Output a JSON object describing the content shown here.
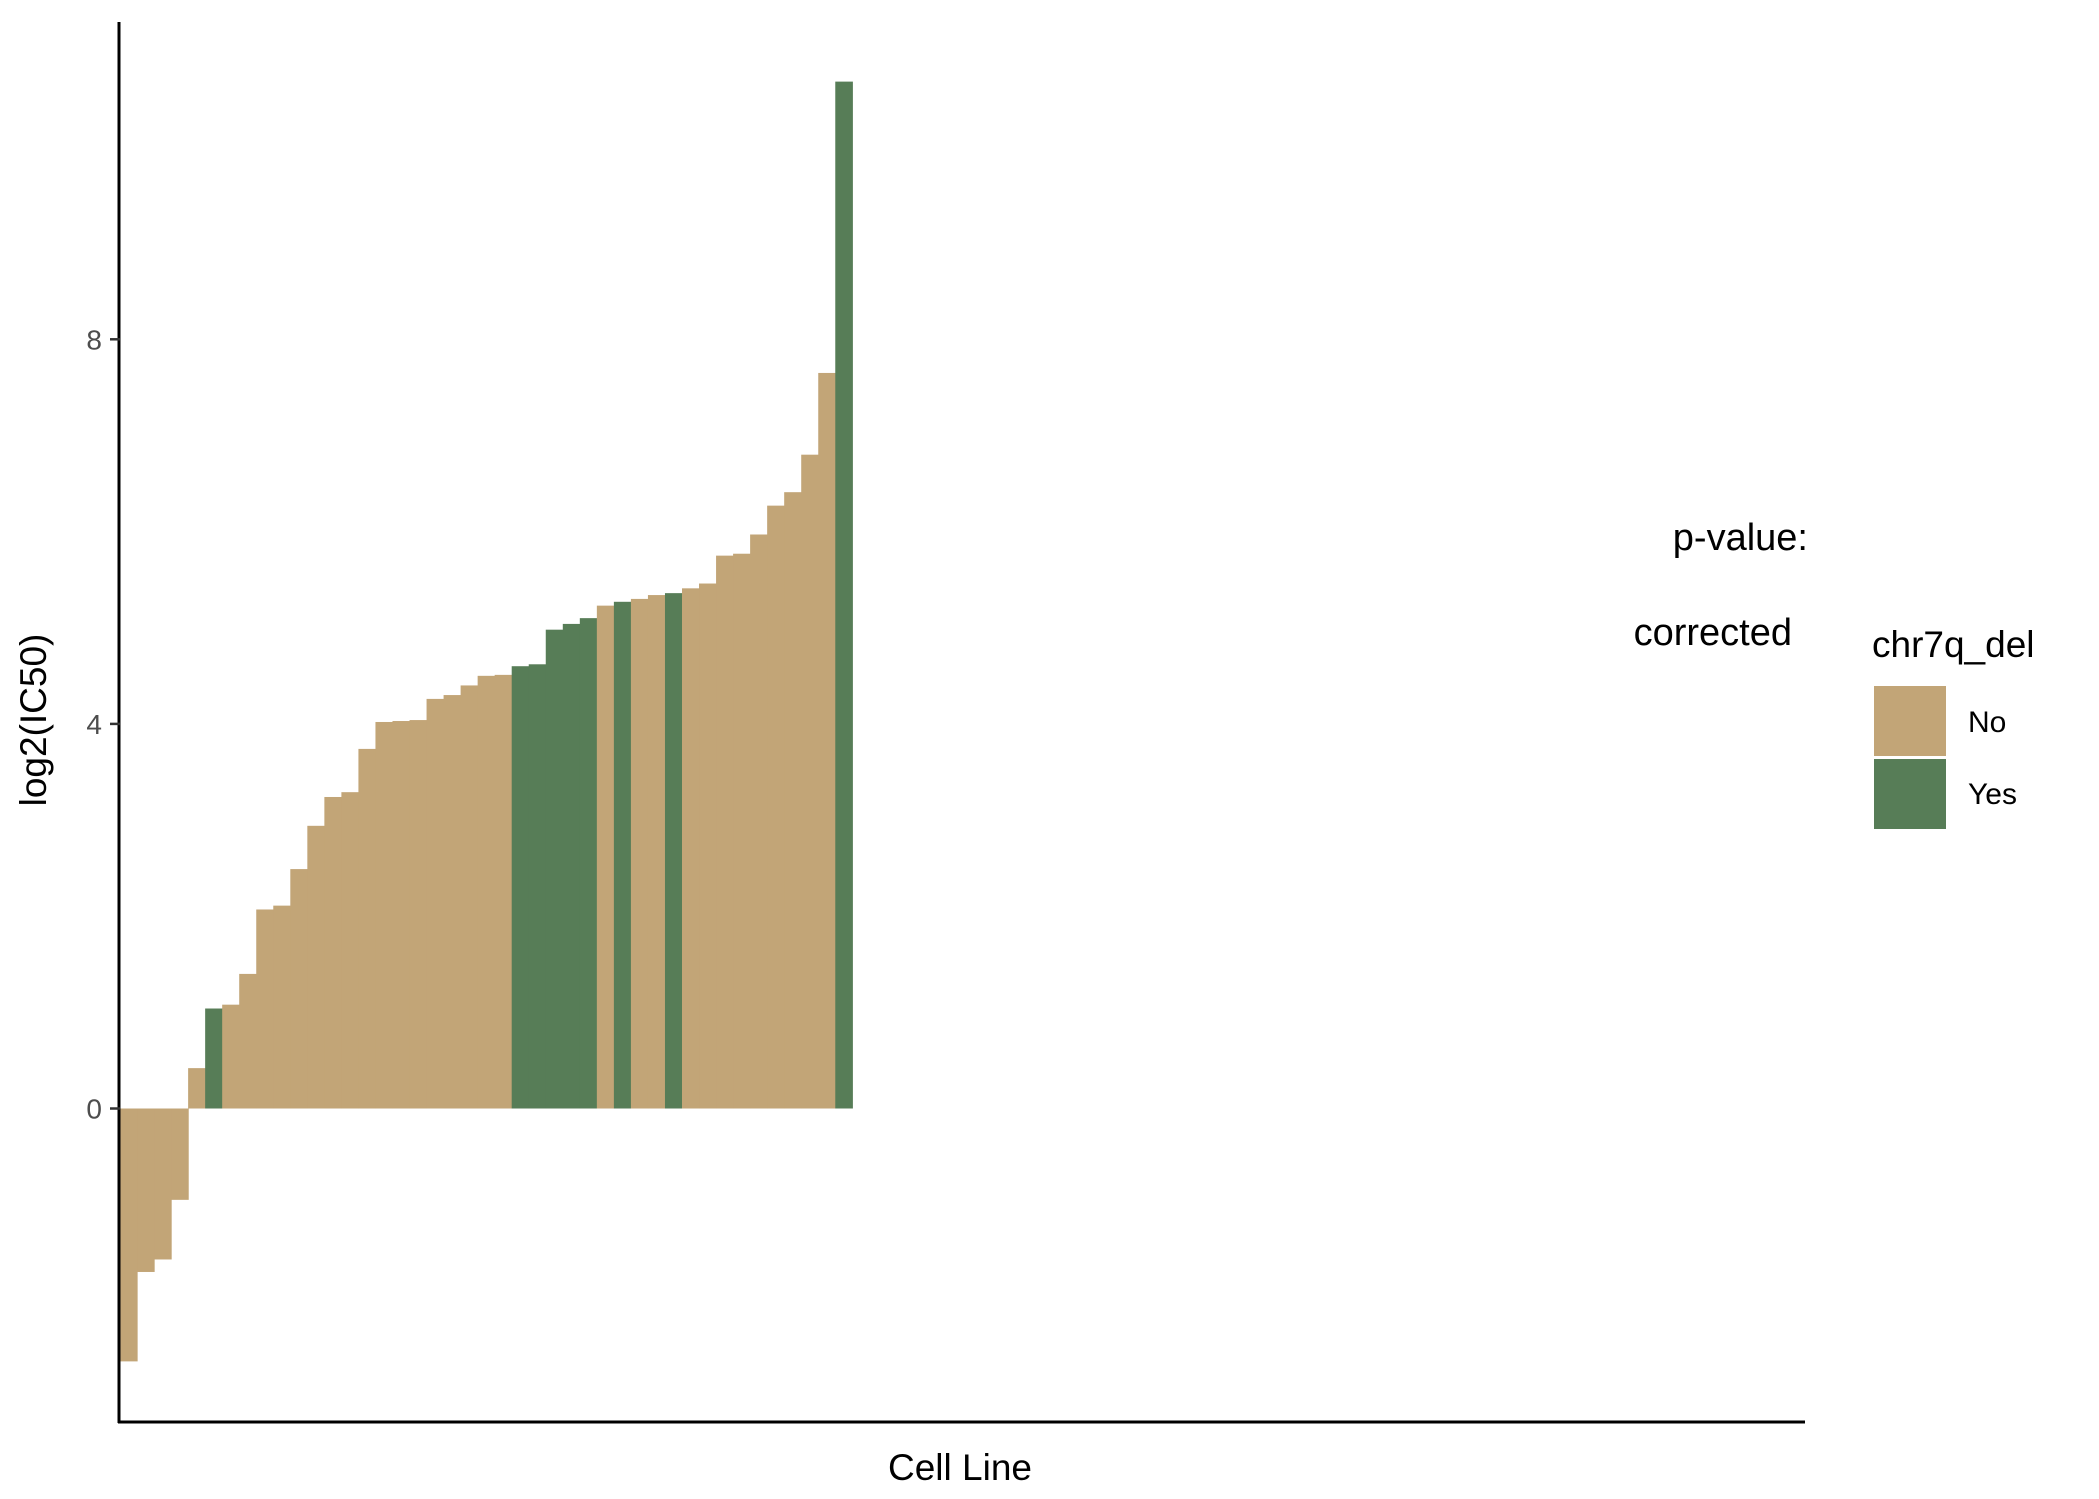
{
  "chart_data": {
    "type": "bar",
    "title": "",
    "xlabel": "Cell Line",
    "ylabel": "log2(IC50)",
    "ylim": [
      -3.25,
      11.3
    ],
    "yticks": [
      0,
      4,
      8
    ],
    "x_slots": 99,
    "grid": false,
    "legend": {
      "title": "chr7q_del",
      "placement": "right",
      "entries": [
        {
          "label": "No",
          "color": "#c2a577"
        },
        {
          "label": "Yes",
          "color": "#577d57"
        }
      ]
    },
    "annotations": [
      "p-value:",
      "corrected"
    ],
    "colors": {
      "No": "#c2a577",
      "Yes": "#577d57"
    },
    "bars": [
      {
        "value": -2.63,
        "group": "No"
      },
      {
        "value": -1.7,
        "group": "No"
      },
      {
        "value": -1.57,
        "group": "No"
      },
      {
        "value": -0.95,
        "group": "No"
      },
      {
        "value": 0.42,
        "group": "No"
      },
      {
        "value": 1.04,
        "group": "Yes"
      },
      {
        "value": 1.08,
        "group": "No"
      },
      {
        "value": 1.4,
        "group": "No"
      },
      {
        "value": 2.07,
        "group": "No"
      },
      {
        "value": 2.11,
        "group": "No"
      },
      {
        "value": 2.49,
        "group": "No"
      },
      {
        "value": 2.94,
        "group": "No"
      },
      {
        "value": 3.24,
        "group": "No"
      },
      {
        "value": 3.29,
        "group": "No"
      },
      {
        "value": 3.74,
        "group": "No"
      },
      {
        "value": 4.02,
        "group": "No"
      },
      {
        "value": 4.03,
        "group": "No"
      },
      {
        "value": 4.04,
        "group": "No"
      },
      {
        "value": 4.26,
        "group": "No"
      },
      {
        "value": 4.3,
        "group": "No"
      },
      {
        "value": 4.4,
        "group": "No"
      },
      {
        "value": 4.5,
        "group": "No"
      },
      {
        "value": 4.51,
        "group": "No"
      },
      {
        "value": 4.6,
        "group": "Yes"
      },
      {
        "value": 4.62,
        "group": "Yes"
      },
      {
        "value": 4.98,
        "group": "Yes"
      },
      {
        "value": 5.04,
        "group": "Yes"
      },
      {
        "value": 5.1,
        "group": "Yes"
      },
      {
        "value": 5.23,
        "group": "No"
      },
      {
        "value": 5.27,
        "group": "Yes"
      },
      {
        "value": 5.3,
        "group": "No"
      },
      {
        "value": 5.34,
        "group": "No"
      },
      {
        "value": 5.36,
        "group": "Yes"
      },
      {
        "value": 5.41,
        "group": "No"
      },
      {
        "value": 5.46,
        "group": "No"
      },
      {
        "value": 5.75,
        "group": "No"
      },
      {
        "value": 5.77,
        "group": "No"
      },
      {
        "value": 5.97,
        "group": "No"
      },
      {
        "value": 6.27,
        "group": "No"
      },
      {
        "value": 6.41,
        "group": "No"
      },
      {
        "value": 6.8,
        "group": "No"
      },
      {
        "value": 7.65,
        "group": "No"
      },
      {
        "value": 10.68,
        "group": "Yes"
      }
    ]
  }
}
